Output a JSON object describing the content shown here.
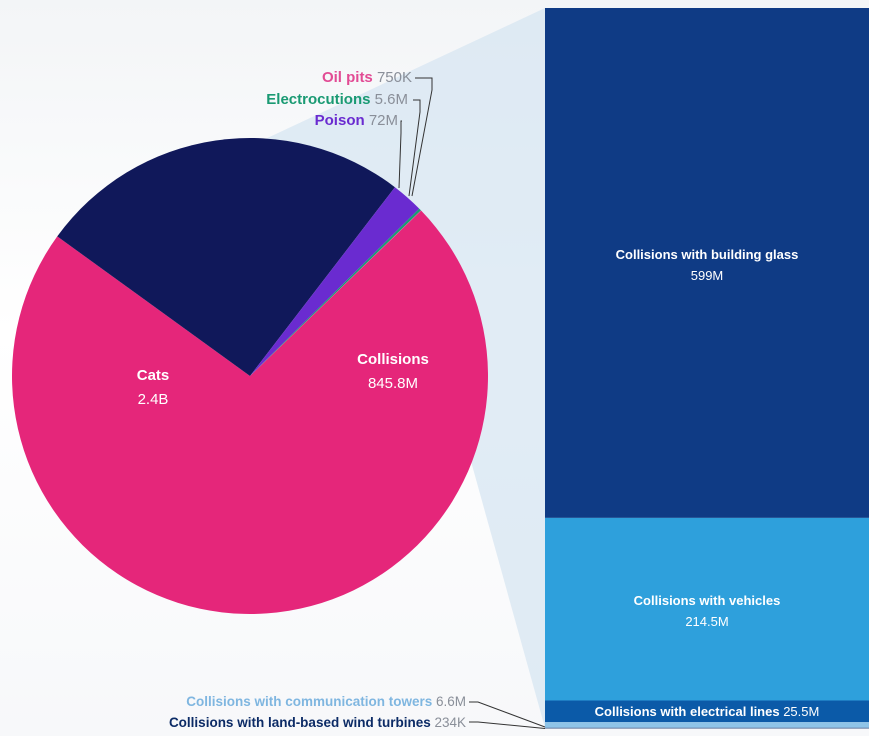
{
  "chart_data": {
    "type": "pie",
    "title": "",
    "pie": {
      "slices": [
        {
          "name": "Cats",
          "value": 2400000000,
          "display": "2.4B",
          "color": "#e5267a"
        },
        {
          "name": "Collisions",
          "value": 845800000,
          "display": "845.8M",
          "color": "#10185a"
        },
        {
          "name": "Poison",
          "value": 72000000,
          "display": "72M",
          "color": "#6a2bd0"
        },
        {
          "name": "Electrocutions",
          "value": 5600000,
          "display": "5.6M",
          "color": "#1a9a73"
        },
        {
          "name": "Oil pits",
          "value": 750000,
          "display": "750K",
          "color": "#e24b94"
        }
      ]
    },
    "breakdown": {
      "parent": "Collisions",
      "bars": [
        {
          "name": "Collisions with building glass",
          "value": 599000000,
          "display": "599M",
          "color": "#0f3b85"
        },
        {
          "name": "Collisions with vehicles",
          "value": 214500000,
          "display": "214.5M",
          "color": "#2ea0dc"
        },
        {
          "name": "Collisions with electrical lines",
          "value": 25500000,
          "display": "25.5M",
          "color": "#0b5aa8"
        },
        {
          "name": "Collisions with communication towers",
          "value": 6600000,
          "display": "6.6M",
          "color": "#8ec4e8"
        },
        {
          "name": "Collisions with land-based wind turbines",
          "value": 234000,
          "display": "234K",
          "color": "#0c2b66"
        }
      ]
    },
    "label_colors": {
      "Oil pits": "#e24b94",
      "Electrocutions": "#1a9a73",
      "Poison": "#6a2bd0",
      "Collisions with communication towers": "#7fb6e0",
      "Collisions with land-based wind turbines": "#0c2b66",
      "value_gray": "#8a8f99"
    }
  }
}
